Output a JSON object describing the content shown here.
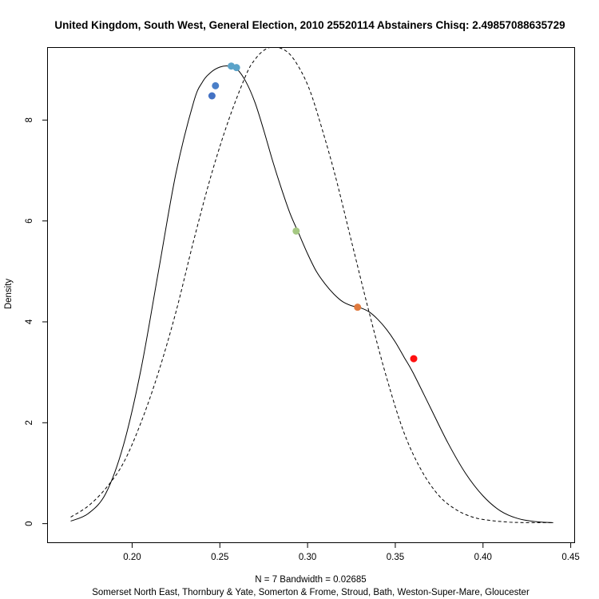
{
  "chart_data": {
    "type": "line",
    "title": "United Kingdom, South West, General Election, 2010 25520114 Abstainers Chisq: 2.49857088635729",
    "xlabel": "N = 7   Bandwidth = 0.02685",
    "subtitle": "Somerset North East, Thornbury & Yate, Somerton & Frome, Stroud, Bath, Weston-Super-Mare, Gloucester",
    "ylabel": "Density",
    "xlim": [
      0.152,
      0.452
    ],
    "ylim": [
      -0.37,
      9.43
    ],
    "xticks": [
      0.2,
      0.25,
      0.3,
      0.35,
      0.4,
      0.45
    ],
    "xtick_labels": [
      "0.20",
      "0.25",
      "0.30",
      "0.35",
      "0.40",
      "0.45"
    ],
    "yticks": [
      0,
      2,
      4,
      6,
      8
    ],
    "ytick_labels": [
      "0",
      "2",
      "4",
      "6",
      "8"
    ],
    "series": [
      {
        "style": "solid",
        "color": "#000000",
        "x": [
          0.165,
          0.175,
          0.185,
          0.195,
          0.205,
          0.215,
          0.225,
          0.235,
          0.24,
          0.245,
          0.25,
          0.255,
          0.26,
          0.265,
          0.27,
          0.275,
          0.28,
          0.285,
          0.29,
          0.295,
          0.3,
          0.305,
          0.31,
          0.315,
          0.32,
          0.325,
          0.33,
          0.335,
          0.34,
          0.345,
          0.35,
          0.355,
          0.36,
          0.37,
          0.38,
          0.39,
          0.4,
          0.41,
          0.42,
          0.43,
          0.44
        ],
        "y": [
          0.05,
          0.2,
          0.6,
          1.55,
          3.05,
          5.0,
          6.95,
          8.35,
          8.75,
          8.95,
          9.05,
          9.07,
          9.0,
          8.75,
          8.35,
          7.8,
          7.2,
          6.65,
          6.15,
          5.75,
          5.35,
          5.0,
          4.75,
          4.55,
          4.4,
          4.32,
          4.28,
          4.2,
          4.05,
          3.85,
          3.6,
          3.3,
          3.0,
          2.3,
          1.6,
          1.0,
          0.55,
          0.25,
          0.1,
          0.04,
          0.02
        ]
      },
      {
        "style": "dashed",
        "color": "#000000",
        "x": [
          0.165,
          0.175,
          0.185,
          0.195,
          0.205,
          0.215,
          0.225,
          0.235,
          0.245,
          0.255,
          0.265,
          0.27,
          0.275,
          0.28,
          0.285,
          0.29,
          0.295,
          0.3,
          0.305,
          0.315,
          0.325,
          0.335,
          0.345,
          0.355,
          0.365,
          0.375,
          0.385,
          0.395,
          0.405,
          0.415,
          0.425,
          0.44
        ],
        "y": [
          0.13,
          0.35,
          0.7,
          1.2,
          2.0,
          3.0,
          4.2,
          5.6,
          6.9,
          8.0,
          8.9,
          9.2,
          9.38,
          9.45,
          9.42,
          9.3,
          9.05,
          8.7,
          8.2,
          7.0,
          5.6,
          4.2,
          2.9,
          1.8,
          1.05,
          0.55,
          0.27,
          0.12,
          0.06,
          0.03,
          0.02,
          0.02
        ]
      }
    ],
    "points": [
      {
        "x": 0.2455,
        "y": 8.48,
        "color": "#4472c4"
      },
      {
        "x": 0.2475,
        "y": 8.68,
        "color": "#4a7fc8"
      },
      {
        "x": 0.2565,
        "y": 9.07,
        "color": "#5ba3c9"
      },
      {
        "x": 0.2595,
        "y": 9.04,
        "color": "#5ba3c9"
      },
      {
        "x": 0.2935,
        "y": 5.8,
        "color": "#a5c882"
      },
      {
        "x": 0.3285,
        "y": 4.29,
        "color": "#e07a3f"
      },
      {
        "x": 0.3605,
        "y": 3.27,
        "color": "#ff1010"
      }
    ]
  }
}
